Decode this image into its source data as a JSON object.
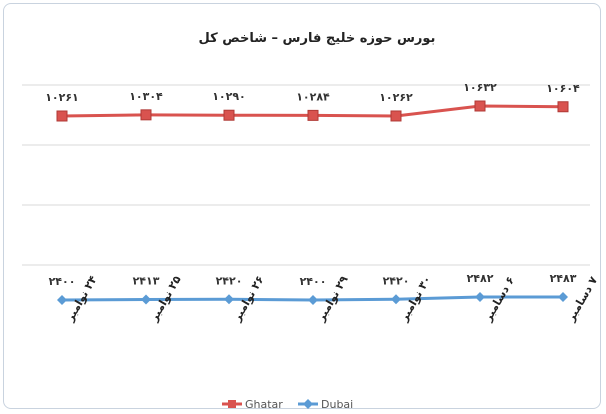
{
  "chart_data": {
    "type": "line",
    "title": "بورس حوزه خلیج فارس – شاخص کل",
    "categories": [
      "۲۴ نوامبر",
      "۲۵ نوامبر",
      "۲۶ نوامبر",
      "۲۹ نوامبر",
      "۳۰ نوامبر",
      "۶ دسامبر",
      "۷ دسامبر"
    ],
    "series": [
      {
        "name": "Ghatar",
        "color": "#d9534f",
        "marker": "square",
        "values": [
          10261,
          10304,
          10290,
          10284,
          10262,
          10632,
          10604
        ],
        "labels": [
          "۱۰۲۶۱",
          "۱۰۳۰۴",
          "۱۰۲۹۰",
          "۱۰۲۸۴",
          "۱۰۲۶۲",
          "۱۰۶۳۲",
          "۱۰۶۰۴"
        ]
      },
      {
        "name": "Dubai",
        "color": "#5b9bd5",
        "marker": "diamond",
        "values": [
          2400,
          2413,
          2420,
          2400,
          2420,
          2482,
          2483
        ],
        "labels": [
          "۲۴۰۰",
          "۲۴۱۳",
          "۲۴۲۰",
          "۲۴۰۰",
          "۲۴۲۰",
          "۲۴۸۲",
          "۲۴۸۳"
        ]
      }
    ],
    "legend_position": "bottom",
    "grid": true
  }
}
